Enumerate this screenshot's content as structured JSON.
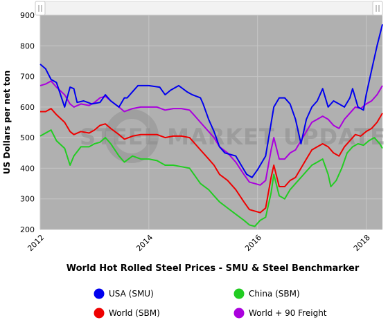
{
  "chart_data": {
    "type": "line",
    "title": "World Hot Rolled Steel Prices - SMU & Steel Benchmarker",
    "ylabel": "US Dollars per net ton",
    "xlabel": "",
    "xlim": [
      2012.0,
      2018.3
    ],
    "ylim": [
      200,
      900
    ],
    "y_ticks": [
      "200",
      "300",
      "400",
      "500",
      "600",
      "700",
      "800",
      "900"
    ],
    "x_ticks": [
      "2012",
      "2014",
      "2016",
      "2018"
    ],
    "grid": true,
    "legend_position": "bottom",
    "watermark": "STEEL MARKET UPDATE",
    "colors": {
      "plot_bg": "#b0b0b0",
      "grid": "#c6c6c6",
      "navigator": "#f2f2f2"
    },
    "series": [
      {
        "name": "USA (SMU)",
        "color": "#0000ee",
        "points": [
          [
            2012.0,
            740
          ],
          [
            2012.1,
            725
          ],
          [
            2012.2,
            690
          ],
          [
            2012.3,
            680
          ],
          [
            2012.45,
            600
          ],
          [
            2012.55,
            665
          ],
          [
            2012.62,
            660
          ],
          [
            2012.68,
            615
          ],
          [
            2012.8,
            620
          ],
          [
            2012.95,
            610
          ],
          [
            2013.1,
            615
          ],
          [
            2013.2,
            640
          ],
          [
            2013.3,
            620
          ],
          [
            2013.45,
            600
          ],
          [
            2013.55,
            630
          ],
          [
            2013.6,
            630
          ],
          [
            2013.7,
            650
          ],
          [
            2013.8,
            670
          ],
          [
            2014.0,
            670
          ],
          [
            2014.2,
            665
          ],
          [
            2014.3,
            640
          ],
          [
            2014.4,
            655
          ],
          [
            2014.55,
            670
          ],
          [
            2014.7,
            650
          ],
          [
            2014.8,
            640
          ],
          [
            2014.95,
            630
          ],
          [
            2015.0,
            610
          ],
          [
            2015.1,
            560
          ],
          [
            2015.2,
            520
          ],
          [
            2015.3,
            470
          ],
          [
            2015.4,
            450
          ],
          [
            2015.5,
            445
          ],
          [
            2015.6,
            440
          ],
          [
            2015.7,
            410
          ],
          [
            2015.8,
            380
          ],
          [
            2015.9,
            370
          ],
          [
            2016.0,
            395
          ],
          [
            2016.15,
            440
          ],
          [
            2016.3,
            600
          ],
          [
            2016.4,
            630
          ],
          [
            2016.5,
            630
          ],
          [
            2016.6,
            610
          ],
          [
            2016.7,
            560
          ],
          [
            2016.8,
            480
          ],
          [
            2016.9,
            560
          ],
          [
            2017.0,
            600
          ],
          [
            2017.1,
            620
          ],
          [
            2017.2,
            660
          ],
          [
            2017.3,
            600
          ],
          [
            2017.4,
            620
          ],
          [
            2017.5,
            610
          ],
          [
            2017.6,
            600
          ],
          [
            2017.7,
            630
          ],
          [
            2017.75,
            660
          ],
          [
            2017.85,
            600
          ],
          [
            2017.95,
            590
          ],
          [
            2018.0,
            640
          ],
          [
            2018.1,
            720
          ],
          [
            2018.2,
            800
          ],
          [
            2018.3,
            870
          ]
        ]
      },
      {
        "name": "China (SBM)",
        "color": "#22cc22",
        "points": [
          [
            2012.0,
            505
          ],
          [
            2012.1,
            515
          ],
          [
            2012.2,
            525
          ],
          [
            2012.3,
            490
          ],
          [
            2012.45,
            465
          ],
          [
            2012.55,
            410
          ],
          [
            2012.62,
            440
          ],
          [
            2012.75,
            470
          ],
          [
            2012.9,
            470
          ],
          [
            2013.0,
            480
          ],
          [
            2013.1,
            485
          ],
          [
            2013.2,
            500
          ],
          [
            2013.3,
            480
          ],
          [
            2013.45,
            440
          ],
          [
            2013.55,
            420
          ],
          [
            2013.7,
            440
          ],
          [
            2013.85,
            430
          ],
          [
            2014.0,
            430
          ],
          [
            2014.15,
            425
          ],
          [
            2014.3,
            410
          ],
          [
            2014.45,
            410
          ],
          [
            2014.6,
            405
          ],
          [
            2014.75,
            400
          ],
          [
            2014.85,
            375
          ],
          [
            2014.95,
            350
          ],
          [
            2015.1,
            330
          ],
          [
            2015.2,
            310
          ],
          [
            2015.3,
            290
          ],
          [
            2015.45,
            270
          ],
          [
            2015.6,
            250
          ],
          [
            2015.75,
            230
          ],
          [
            2015.85,
            215
          ],
          [
            2015.95,
            210
          ],
          [
            2016.05,
            230
          ],
          [
            2016.15,
            240
          ],
          [
            2016.25,
            320
          ],
          [
            2016.3,
            380
          ],
          [
            2016.4,
            310
          ],
          [
            2016.5,
            300
          ],
          [
            2016.6,
            330
          ],
          [
            2016.7,
            350
          ],
          [
            2016.8,
            370
          ],
          [
            2016.9,
            390
          ],
          [
            2017.0,
            410
          ],
          [
            2017.1,
            420
          ],
          [
            2017.2,
            430
          ],
          [
            2017.3,
            380
          ],
          [
            2017.35,
            340
          ],
          [
            2017.45,
            360
          ],
          [
            2017.55,
            400
          ],
          [
            2017.65,
            450
          ],
          [
            2017.75,
            470
          ],
          [
            2017.85,
            480
          ],
          [
            2017.95,
            475
          ],
          [
            2018.05,
            490
          ],
          [
            2018.15,
            500
          ],
          [
            2018.25,
            480
          ],
          [
            2018.3,
            465
          ]
        ]
      },
      {
        "name": "World (SBM)",
        "color": "#ee0000",
        "points": [
          [
            2012.0,
            585
          ],
          [
            2012.1,
            585
          ],
          [
            2012.2,
            595
          ],
          [
            2012.3,
            575
          ],
          [
            2012.45,
            550
          ],
          [
            2012.55,
            520
          ],
          [
            2012.62,
            510
          ],
          [
            2012.75,
            520
          ],
          [
            2012.9,
            515
          ],
          [
            2013.0,
            525
          ],
          [
            2013.1,
            540
          ],
          [
            2013.2,
            545
          ],
          [
            2013.3,
            530
          ],
          [
            2013.45,
            510
          ],
          [
            2013.55,
            495
          ],
          [
            2013.7,
            505
          ],
          [
            2013.85,
            510
          ],
          [
            2014.0,
            510
          ],
          [
            2014.15,
            510
          ],
          [
            2014.3,
            500
          ],
          [
            2014.45,
            505
          ],
          [
            2014.6,
            505
          ],
          [
            2014.75,
            500
          ],
          [
            2014.85,
            480
          ],
          [
            2014.95,
            460
          ],
          [
            2015.1,
            430
          ],
          [
            2015.2,
            410
          ],
          [
            2015.3,
            380
          ],
          [
            2015.45,
            360
          ],
          [
            2015.6,
            330
          ],
          [
            2015.75,
            290
          ],
          [
            2015.85,
            265
          ],
          [
            2015.95,
            260
          ],
          [
            2016.05,
            255
          ],
          [
            2016.15,
            270
          ],
          [
            2016.25,
            370
          ],
          [
            2016.3,
            410
          ],
          [
            2016.4,
            340
          ],
          [
            2016.5,
            340
          ],
          [
            2016.6,
            360
          ],
          [
            2016.7,
            370
          ],
          [
            2016.8,
            400
          ],
          [
            2016.9,
            430
          ],
          [
            2017.0,
            460
          ],
          [
            2017.1,
            470
          ],
          [
            2017.2,
            480
          ],
          [
            2017.3,
            470
          ],
          [
            2017.4,
            450
          ],
          [
            2017.5,
            440
          ],
          [
            2017.6,
            470
          ],
          [
            2017.7,
            490
          ],
          [
            2017.8,
            510
          ],
          [
            2017.9,
            505
          ],
          [
            2018.0,
            520
          ],
          [
            2018.1,
            530
          ],
          [
            2018.2,
            550
          ],
          [
            2018.3,
            580
          ]
        ]
      },
      {
        "name": "World + 90 Freight",
        "color": "#aa00dd",
        "points": [
          [
            2012.0,
            670
          ],
          [
            2012.1,
            675
          ],
          [
            2012.2,
            685
          ],
          [
            2012.3,
            665
          ],
          [
            2012.45,
            640
          ],
          [
            2012.55,
            610
          ],
          [
            2012.62,
            600
          ],
          [
            2012.75,
            610
          ],
          [
            2012.9,
            605
          ],
          [
            2013.0,
            615
          ],
          [
            2013.1,
            630
          ],
          [
            2013.2,
            635
          ],
          [
            2013.3,
            620
          ],
          [
            2013.45,
            600
          ],
          [
            2013.55,
            585
          ],
          [
            2013.7,
            595
          ],
          [
            2013.85,
            600
          ],
          [
            2014.0,
            600
          ],
          [
            2014.15,
            600
          ],
          [
            2014.3,
            590
          ],
          [
            2014.45,
            595
          ],
          [
            2014.6,
            595
          ],
          [
            2014.75,
            590
          ],
          [
            2014.85,
            570
          ],
          [
            2014.95,
            550
          ],
          [
            2015.1,
            520
          ],
          [
            2015.2,
            500
          ],
          [
            2015.3,
            470
          ],
          [
            2015.45,
            450
          ],
          [
            2015.6,
            420
          ],
          [
            2015.75,
            380
          ],
          [
            2015.85,
            355
          ],
          [
            2015.95,
            350
          ],
          [
            2016.05,
            345
          ],
          [
            2016.15,
            360
          ],
          [
            2016.25,
            460
          ],
          [
            2016.3,
            500
          ],
          [
            2016.4,
            430
          ],
          [
            2016.5,
            430
          ],
          [
            2016.6,
            450
          ],
          [
            2016.7,
            460
          ],
          [
            2016.8,
            490
          ],
          [
            2016.9,
            520
          ],
          [
            2017.0,
            550
          ],
          [
            2017.1,
            560
          ],
          [
            2017.2,
            570
          ],
          [
            2017.3,
            560
          ],
          [
            2017.4,
            540
          ],
          [
            2017.5,
            530
          ],
          [
            2017.6,
            560
          ],
          [
            2017.7,
            580
          ],
          [
            2017.8,
            600
          ],
          [
            2017.9,
            595
          ],
          [
            2018.0,
            610
          ],
          [
            2018.1,
            620
          ],
          [
            2018.2,
            640
          ],
          [
            2018.3,
            670
          ]
        ]
      }
    ]
  }
}
